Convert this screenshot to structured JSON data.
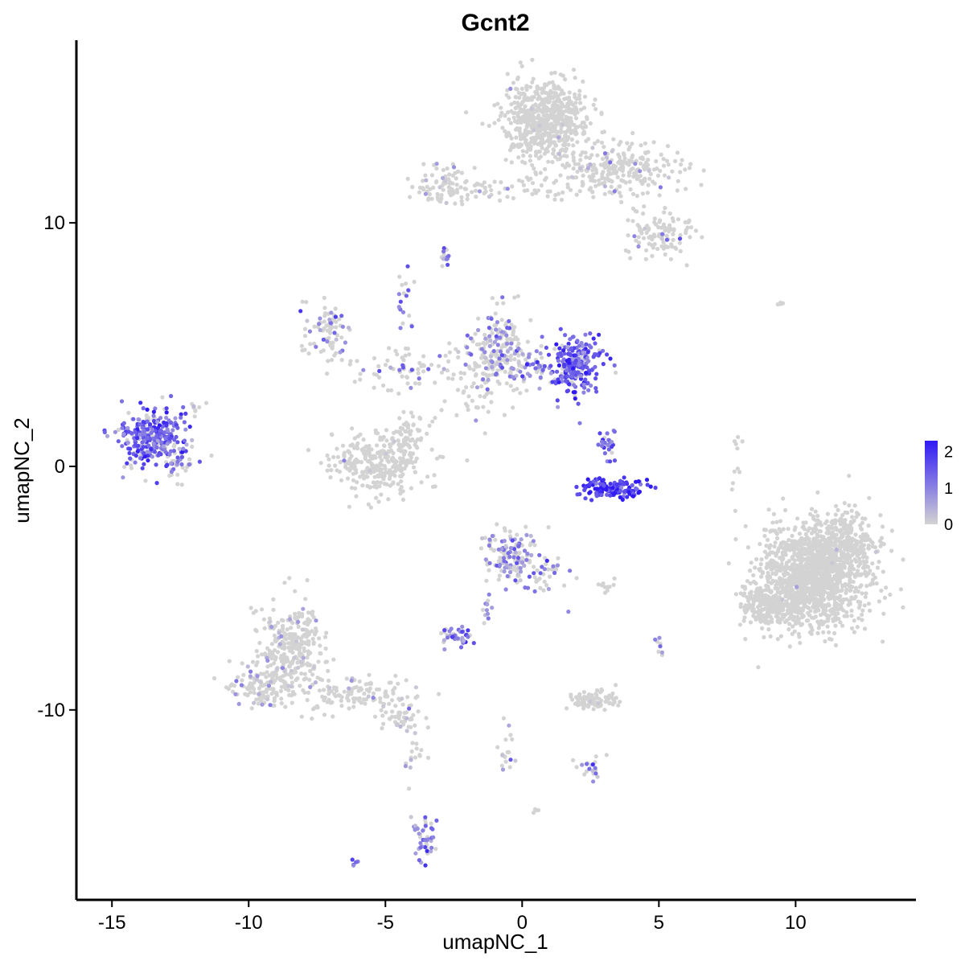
{
  "chart_data": {
    "type": "scatter",
    "title": "Gcnt2",
    "xlabel": "umapNC_1",
    "ylabel": "umapNC_2",
    "xlim": [
      -16.3,
      14.4
    ],
    "ylim": [
      -17.8,
      17.5
    ],
    "xticks": [
      -15,
      -10,
      -5,
      0,
      5,
      10
    ],
    "yticks": [
      -10,
      0,
      10
    ],
    "xtick_labels": [
      "-15",
      "-10",
      "-5",
      "0",
      "5",
      "10"
    ],
    "ytick_labels": [
      "-10",
      "0",
      "10"
    ],
    "grid": false,
    "legend": {
      "placement": "right",
      "type": "continuous-colorbar",
      "min": 0,
      "max": 2.3,
      "ticks": [
        0,
        1,
        2
      ],
      "tick_labels": [
        "0",
        "1",
        "2"
      ],
      "low_color": "#d3d3d3",
      "high_color": "#2f19f5"
    },
    "clusters": [
      {
        "cx": 0.9,
        "cy": 14.2,
        "sx": 1.05,
        "sy": 1.1,
        "n": 650,
        "expr": 0.0,
        "p": 0.01
      },
      {
        "cx": 3.6,
        "cy": 12.1,
        "sx": 1.6,
        "sy": 0.75,
        "n": 260,
        "expr": 0.4,
        "p": 0.04
      },
      {
        "cx": -0.8,
        "cy": 11.4,
        "sx": 2.2,
        "sy": 0.35,
        "n": 80,
        "expr": 0.5,
        "p": 0.05
      },
      {
        "cx": -2.8,
        "cy": 11.7,
        "sx": 0.55,
        "sy": 0.6,
        "n": 60,
        "expr": 0.6,
        "p": 0.1
      },
      {
        "cx": 5.1,
        "cy": 9.5,
        "sx": 0.9,
        "sy": 0.6,
        "n": 110,
        "expr": 0.6,
        "p": 0.08
      },
      {
        "cx": -2.8,
        "cy": 8.6,
        "sx": 0.15,
        "sy": 0.2,
        "n": 14,
        "expr": 1.1,
        "p": 0.8
      },
      {
        "cx": -7.1,
        "cy": 5.6,
        "sx": 0.55,
        "sy": 0.85,
        "n": 80,
        "expr": 0.7,
        "p": 0.2
      },
      {
        "cx": -4.6,
        "cy": 4.0,
        "sx": 1.4,
        "sy": 0.6,
        "n": 70,
        "expr": 1.0,
        "p": 0.25
      },
      {
        "cx": -4.3,
        "cy": 6.8,
        "sx": 0.25,
        "sy": 0.8,
        "n": 20,
        "expr": 1.2,
        "p": 0.5
      },
      {
        "cx": -1.6,
        "cy": 3.3,
        "sx": 0.9,
        "sy": 1.1,
        "n": 60,
        "expr": 0.5,
        "p": 0.1
      },
      {
        "cx": -0.8,
        "cy": 4.8,
        "sx": 0.7,
        "sy": 1.1,
        "n": 200,
        "expr": 0.9,
        "p": 0.35
      },
      {
        "cx": 0.8,
        "cy": 4.0,
        "sx": 1.0,
        "sy": 0.45,
        "n": 60,
        "expr": 1.1,
        "p": 0.5
      },
      {
        "cx": 2.0,
        "cy": 4.1,
        "sx": 0.6,
        "sy": 0.8,
        "n": 230,
        "expr": 1.5,
        "p": 0.85
      },
      {
        "cx": -13.6,
        "cy": 1.2,
        "sx": 0.8,
        "sy": 0.75,
        "n": 300,
        "expr": 1.4,
        "p": 0.8
      },
      {
        "cx": -12.6,
        "cy": 0.2,
        "sx": 0.35,
        "sy": 0.6,
        "n": 40,
        "expr": 1.2,
        "p": 0.5
      },
      {
        "cx": -11.9,
        "cy": 2.3,
        "sx": 0.2,
        "sy": 0.3,
        "n": 8,
        "expr": 0.5,
        "p": 0.2
      },
      {
        "cx": -5.2,
        "cy": 0.1,
        "sx": 1.2,
        "sy": 0.8,
        "n": 300,
        "expr": 0.0,
        "p": 0.02
      },
      {
        "cx": -4.1,
        "cy": 1.3,
        "sx": 0.6,
        "sy": 0.6,
        "n": 60,
        "expr": 0.0,
        "p": 0.02
      },
      {
        "cx": 3.3,
        "cy": -0.9,
        "sx": 0.75,
        "sy": 0.28,
        "n": 130,
        "expr": 2.0,
        "p": 0.95
      },
      {
        "cx": 3.2,
        "cy": 0.9,
        "sx": 0.3,
        "sy": 0.55,
        "n": 30,
        "expr": 1.4,
        "p": 0.8
      },
      {
        "cx": 10.7,
        "cy": -4.5,
        "sx": 1.3,
        "sy": 1.45,
        "n": 1400,
        "expr": 0.0,
        "p": 0.005
      },
      {
        "cx": 9.0,
        "cy": -5.7,
        "sx": 0.6,
        "sy": 0.55,
        "n": 200,
        "expr": 0.0,
        "p": 0.005
      },
      {
        "cx": 11.8,
        "cy": -3.2,
        "sx": 0.7,
        "sy": 0.9,
        "n": 200,
        "expr": 0.0,
        "p": 0.005
      },
      {
        "cx": -0.5,
        "cy": -3.6,
        "sx": 0.6,
        "sy": 0.7,
        "n": 130,
        "expr": 0.9,
        "p": 0.45
      },
      {
        "cx": 0.8,
        "cy": -4.5,
        "sx": 0.6,
        "sy": 0.6,
        "n": 40,
        "expr": 0.9,
        "p": 0.4
      },
      {
        "cx": -1.4,
        "cy": -5.7,
        "sx": 0.3,
        "sy": 0.6,
        "n": 12,
        "expr": 1.0,
        "p": 0.6
      },
      {
        "cx": -2.4,
        "cy": -7.0,
        "sx": 0.4,
        "sy": 0.25,
        "n": 45,
        "expr": 1.2,
        "p": 0.7
      },
      {
        "cx": -8.4,
        "cy": -7.5,
        "sx": 0.8,
        "sy": 1.3,
        "n": 280,
        "expr": 0.3,
        "p": 0.08
      },
      {
        "cx": -9.5,
        "cy": -9.0,
        "sx": 0.75,
        "sy": 0.55,
        "n": 140,
        "expr": 0.5,
        "p": 0.12
      },
      {
        "cx": -5.9,
        "cy": -9.3,
        "sx": 1.3,
        "sy": 0.55,
        "n": 120,
        "expr": 0.3,
        "p": 0.06
      },
      {
        "cx": -4.4,
        "cy": -10.3,
        "sx": 0.5,
        "sy": 0.3,
        "n": 40,
        "expr": 0.4,
        "p": 0.1
      },
      {
        "cx": -3.9,
        "cy": -12.0,
        "sx": 0.35,
        "sy": 0.9,
        "n": 18,
        "expr": 0.3,
        "p": 0.1
      },
      {
        "cx": -3.6,
        "cy": -15.2,
        "sx": 0.3,
        "sy": 0.55,
        "n": 45,
        "expr": 1.0,
        "p": 0.7
      },
      {
        "cx": 2.5,
        "cy": -9.6,
        "sx": 0.6,
        "sy": 0.25,
        "n": 90,
        "expr": 0.0,
        "p": 0.02
      },
      {
        "cx": -0.6,
        "cy": -11.5,
        "sx": 0.25,
        "sy": 0.8,
        "n": 18,
        "expr": 0.9,
        "p": 0.5
      },
      {
        "cx": 2.4,
        "cy": -12.5,
        "sx": 0.4,
        "sy": 0.35,
        "n": 20,
        "expr": 1.0,
        "p": 0.6
      },
      {
        "cx": 3.0,
        "cy": -4.9,
        "sx": 0.4,
        "sy": 0.15,
        "n": 10,
        "expr": 0.0,
        "p": 0.1
      },
      {
        "cx": 5.0,
        "cy": -7.4,
        "sx": 0.15,
        "sy": 0.3,
        "n": 8,
        "expr": 1.0,
        "p": 0.5
      },
      {
        "cx": 7.8,
        "cy": 0.0,
        "sx": 0.2,
        "sy": 1.0,
        "n": 10,
        "expr": 0.0,
        "p": 0.0
      },
      {
        "cx": 9.6,
        "cy": 6.7,
        "sx": 0.2,
        "sy": 0.1,
        "n": 4,
        "expr": 0.0,
        "p": 0.0
      },
      {
        "cx": -6.1,
        "cy": -16.3,
        "sx": 0.1,
        "sy": 0.1,
        "n": 5,
        "expr": 1.2,
        "p": 1.0
      },
      {
        "cx": 0.5,
        "cy": -14.1,
        "sx": 0.1,
        "sy": 0.08,
        "n": 4,
        "expr": 0.0,
        "p": 0.0
      }
    ]
  }
}
